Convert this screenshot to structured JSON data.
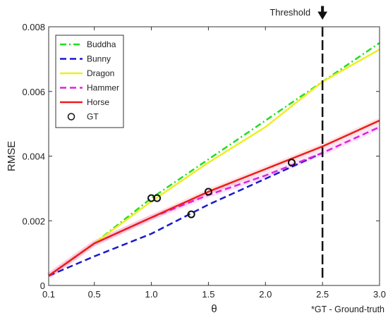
{
  "chart_data": {
    "type": "line",
    "xlabel": "θ",
    "ylabel": "RMSE",
    "xlim": [
      0.1,
      3.0
    ],
    "ylim": [
      0,
      0.008
    ],
    "grid": false,
    "legend_position": "top-left",
    "x_ticks": [
      0.1,
      0.5,
      1.0,
      1.5,
      2.0,
      2.5,
      3.0
    ],
    "x_tick_labels": [
      "0.1",
      "0.5",
      "1.0",
      "1.5",
      "2.0",
      "2.5",
      "3.0"
    ],
    "y_ticks": [
      0,
      0.002,
      0.004,
      0.006,
      0.008
    ],
    "y_tick_labels": [
      "0",
      "0.002",
      "0.004",
      "0.006",
      "0.008"
    ],
    "series": [
      {
        "name": "Buddha",
        "color": "#22dd22",
        "style": "dash-dot",
        "x": [
          0.1,
          0.5,
          1.0,
          1.5,
          2.0,
          2.5,
          3.0
        ],
        "y": [
          0.0003,
          0.0013,
          0.0027,
          0.0039,
          0.0051,
          0.0063,
          0.0075
        ]
      },
      {
        "name": "Bunny",
        "color": "#1a1acc",
        "style": "dashed",
        "x": [
          0.1,
          0.5,
          1.0,
          1.5,
          2.0,
          2.5
        ],
        "y": [
          0.0003,
          0.0009,
          0.0016,
          0.0025,
          0.0033,
          0.0041
        ]
      },
      {
        "name": "Dragon",
        "color": "#eeee22",
        "style": "solid",
        "x": [
          0.1,
          0.5,
          1.0,
          1.5,
          2.0,
          2.5,
          3.0
        ],
        "y": [
          0.0003,
          0.0013,
          0.0026,
          0.0038,
          0.0049,
          0.0063,
          0.0073
        ]
      },
      {
        "name": "Hammer",
        "color": "#dd22dd",
        "style": "dashed",
        "x": [
          0.1,
          0.5,
          1.0,
          1.5,
          2.0,
          2.5,
          3.0
        ],
        "y": [
          0.0003,
          0.0013,
          0.0021,
          0.0028,
          0.0034,
          0.0041,
          0.0049
        ]
      },
      {
        "name": "Horse",
        "color": "#ee1c1c",
        "style": "solid",
        "x": [
          0.1,
          0.5,
          1.0,
          1.5,
          2.0,
          2.5,
          3.0
        ],
        "y": [
          0.0003,
          0.0013,
          0.0021,
          0.0029,
          0.0036,
          0.0043,
          0.0051
        ]
      }
    ],
    "gt_points": {
      "name": "GT",
      "x": [
        1.0,
        1.05,
        1.35,
        1.5,
        2.23
      ],
      "y": [
        0.0027,
        0.0027,
        0.0022,
        0.0029,
        0.0038
      ]
    },
    "threshold": {
      "label": "Threshold",
      "x": 2.5
    },
    "footnote": "*GT - Ground-truth"
  }
}
